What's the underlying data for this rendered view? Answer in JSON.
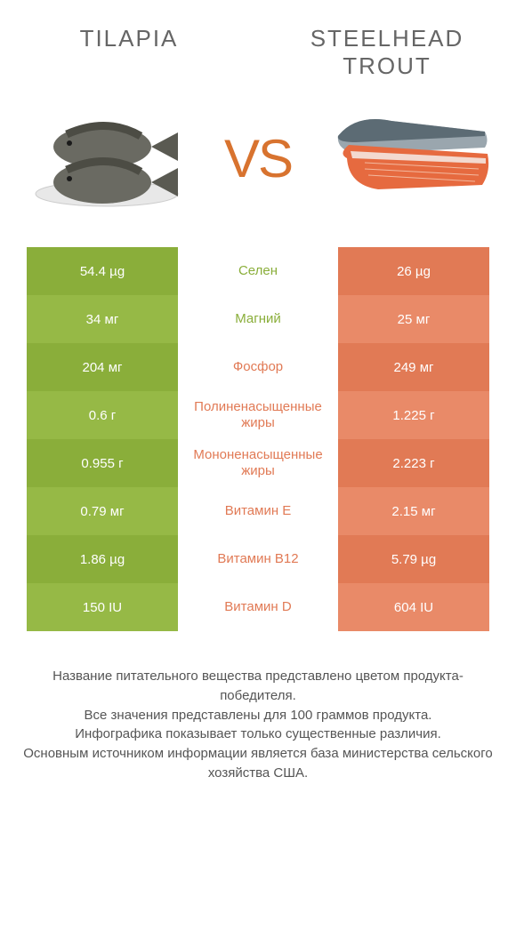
{
  "colors": {
    "left_bg_a": "#8aae3a",
    "left_bg_b": "#96b946",
    "right_bg_a": "#e17a55",
    "right_bg_b": "#e98a68",
    "vs": "#d8732f",
    "text": "#666666"
  },
  "left": {
    "title": "TILAPIA"
  },
  "right": {
    "title": "STEELHEAD TROUT"
  },
  "vs_label": "VS",
  "rows": [
    {
      "left": "54.4 µg",
      "label": "Селен",
      "right": "26 µg",
      "winner": "left"
    },
    {
      "left": "34 мг",
      "label": "Магний",
      "right": "25 мг",
      "winner": "left"
    },
    {
      "left": "204 мг",
      "label": "Фосфор",
      "right": "249 мг",
      "winner": "right"
    },
    {
      "left": "0.6 г",
      "label": "Полиненасыщенные жиры",
      "right": "1.225 г",
      "winner": "right"
    },
    {
      "left": "0.955 г",
      "label": "Мононенасыщенные жиры",
      "right": "2.223 г",
      "winner": "right"
    },
    {
      "left": "0.79 мг",
      "label": "Витамин E",
      "right": "2.15 мг",
      "winner": "right"
    },
    {
      "left": "1.86 µg",
      "label": "Витамин B12",
      "right": "5.79 µg",
      "winner": "right"
    },
    {
      "left": "150 IU",
      "label": "Витамин D",
      "right": "604 IU",
      "winner": "right"
    }
  ],
  "footnote": "Название питательного вещества представлено цветом продукта-победителя.\nВсе значения представлены для 100 граммов продукта.\nИнфографика показывает только существенные различия.\nОсновным источником информации является база министерства сельского хозяйства США."
}
